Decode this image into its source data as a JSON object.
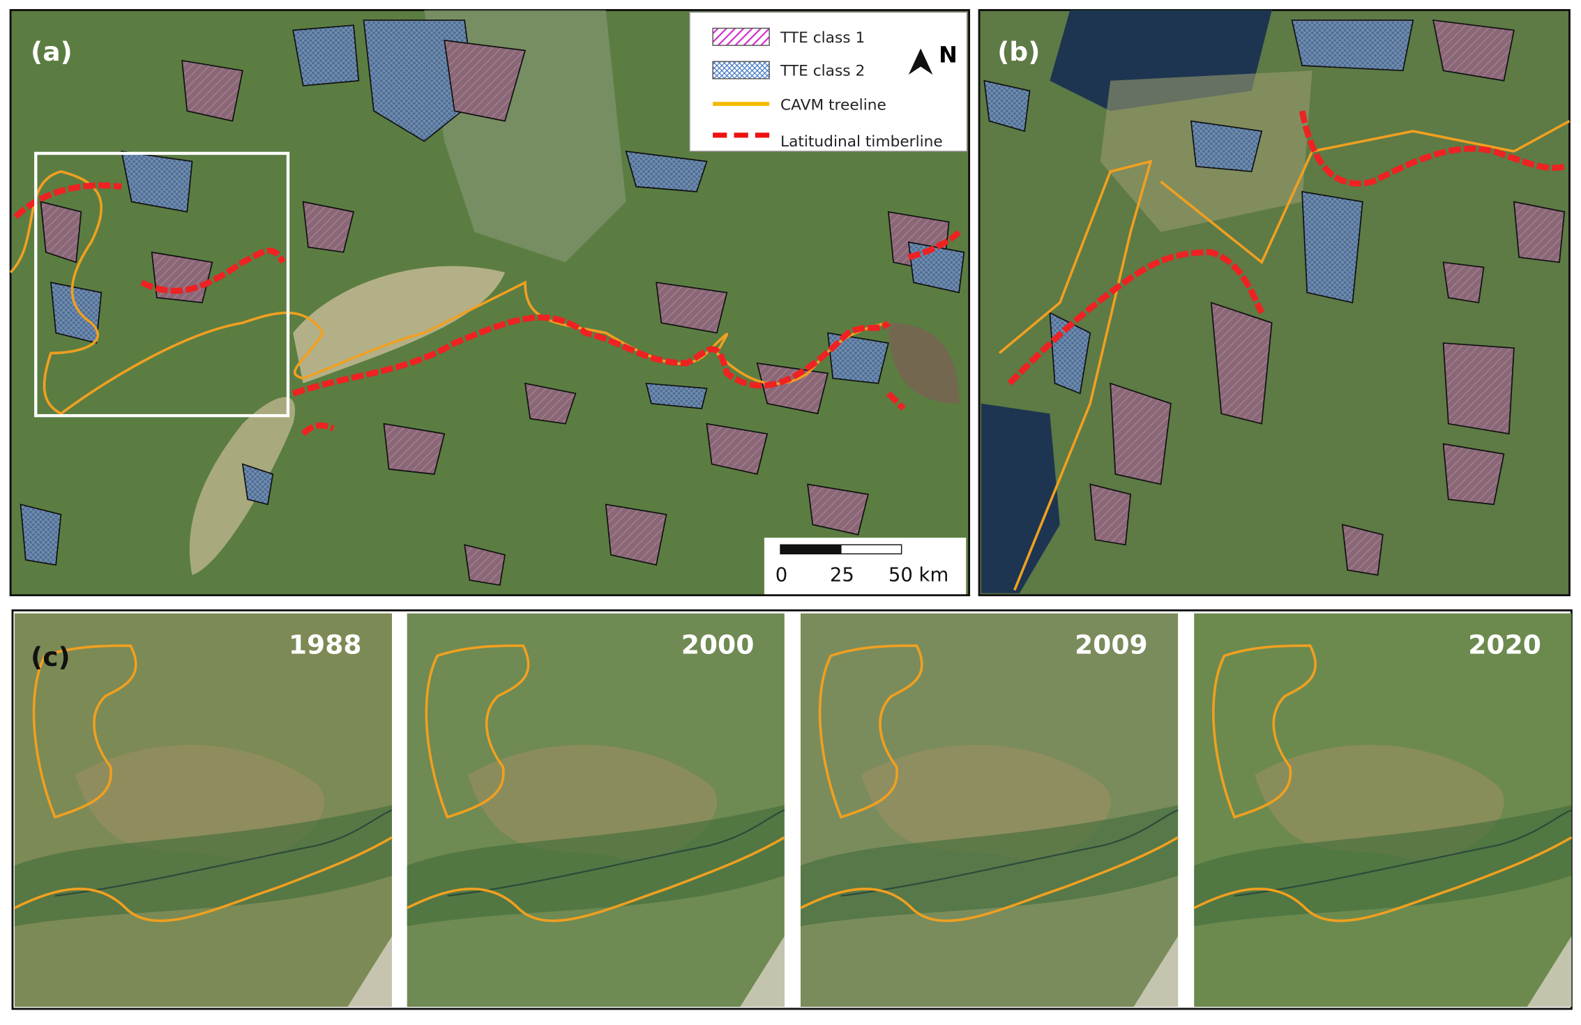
{
  "panels": [
    {
      "label": "(a)"
    },
    {
      "label": "(b)"
    },
    {
      "label": "(c)"
    }
  ],
  "legend": {
    "items": [
      "TTE class 1",
      "TTE class 2",
      "CAVM treeline",
      "Latitudinal timberline"
    ]
  },
  "north": "N",
  "scale_bar": {
    "labels": [
      "0",
      "25",
      "50 km"
    ]
  },
  "years": [
    "1988",
    "2000",
    "2009",
    "2020"
  ]
}
